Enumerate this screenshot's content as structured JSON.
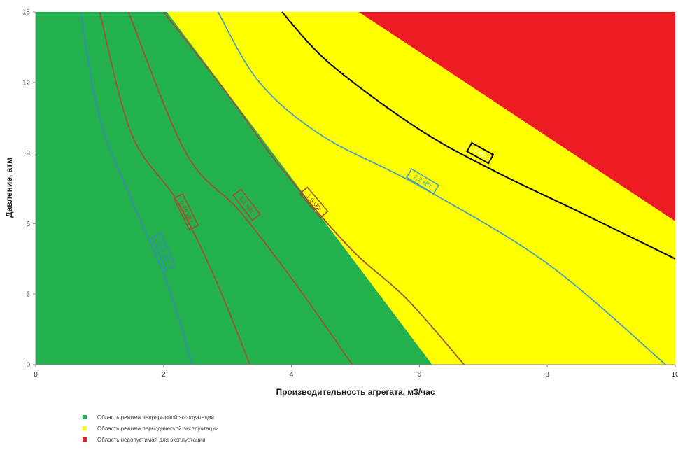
{
  "chart_data": {
    "type": "area",
    "xlabel": "Производительность агрегата, м3/час",
    "ylabel": "Давление, атм",
    "xlim": [
      0,
      10
    ],
    "ylim": [
      0,
      15
    ],
    "xticks": [
      0,
      2,
      4,
      6,
      8,
      10
    ],
    "yticks": [
      0,
      3,
      6,
      9,
      12,
      15
    ],
    "grid": false,
    "legend_position": "bottom-left",
    "regions": [
      {
        "name": "Область режима непрерывной эксплуатации",
        "color": "#22b14c",
        "boundary": [
          {
            "x": 0,
            "y": 15
          },
          {
            "x": 2.05,
            "y": 15
          },
          {
            "x": 6.2,
            "y": 0
          },
          {
            "x": 0,
            "y": 0
          }
        ]
      },
      {
        "name": "Область режима периодической эксплуатации",
        "color": "#ffff00",
        "boundary": [
          {
            "x": 2.05,
            "y": 15
          },
          {
            "x": 5.05,
            "y": 15
          },
          {
            "x": 10,
            "y": 6.1
          },
          {
            "x": 10,
            "y": 0
          },
          {
            "x": 6.2,
            "y": 0
          }
        ]
      },
      {
        "name": "Область недопустимая для эксплуатации",
        "color": "#ed1c24",
        "boundary": [
          {
            "x": 5.05,
            "y": 15
          },
          {
            "x": 10,
            "y": 15
          },
          {
            "x": 10,
            "y": 6.1
          }
        ]
      }
    ],
    "series": [
      {
        "name": "0,55 кВт",
        "color": "#3b8bb5",
        "points": [
          {
            "x": 0.7,
            "y": 15
          },
          {
            "x": 1.0,
            "y": 10.5
          },
          {
            "x": 1.5,
            "y": 7.0
          },
          {
            "x": 2.05,
            "y": 3.5
          },
          {
            "x": 2.45,
            "y": 0
          }
        ],
        "label_at": {
          "x": 2.0,
          "y": 4.8
        }
      },
      {
        "name": "0,75 кВт",
        "color": "#a0522d",
        "points": [
          {
            "x": 1.0,
            "y": 15
          },
          {
            "x": 1.5,
            "y": 9.8
          },
          {
            "x": 2.2,
            "y": 7.0
          },
          {
            "x": 2.8,
            "y": 3.7
          },
          {
            "x": 3.35,
            "y": 0
          }
        ],
        "label_at": {
          "x": 2.35,
          "y": 6.5
        }
      },
      {
        "name": "1,1 кВт",
        "color": "#a0522d",
        "points": [
          {
            "x": 1.45,
            "y": 15
          },
          {
            "x": 2.35,
            "y": 9.0
          },
          {
            "x": 3.2,
            "y": 6.5
          },
          {
            "x": 4.1,
            "y": 3.3
          },
          {
            "x": 4.95,
            "y": 0
          }
        ],
        "label_at": {
          "x": 3.3,
          "y": 6.8
        }
      },
      {
        "name": "1,5 кВт",
        "color": "#a0522d",
        "points": [
          {
            "x": 2.0,
            "y": 15
          },
          {
            "x": 3.0,
            "y": 11.5
          },
          {
            "x": 3.8,
            "y": 8.5
          },
          {
            "x": 4.9,
            "y": 5.0
          },
          {
            "x": 5.8,
            "y": 2.8
          },
          {
            "x": 6.7,
            "y": 0
          }
        ],
        "label_at": {
          "x": 4.35,
          "y": 6.9
        }
      },
      {
        "name": "2,2 кВт",
        "color": "#4a9fb5",
        "points": [
          {
            "x": 2.85,
            "y": 15
          },
          {
            "x": 3.5,
            "y": 12.0
          },
          {
            "x": 4.5,
            "y": 9.7
          },
          {
            "x": 6.0,
            "y": 7.6
          },
          {
            "x": 8.0,
            "y": 4.3
          },
          {
            "x": 9.85,
            "y": 0
          }
        ],
        "label_at": {
          "x": 6.05,
          "y": 7.8
        }
      },
      {
        "name": "3 кВт",
        "color": "#000000",
        "points": [
          {
            "x": 3.85,
            "y": 15
          },
          {
            "x": 4.6,
            "y": 12.8
          },
          {
            "x": 6.0,
            "y": 10.0
          },
          {
            "x": 7.2,
            "y": 8.2
          },
          {
            "x": 8.5,
            "y": 6.5
          },
          {
            "x": 10,
            "y": 4.5
          }
        ],
        "label_at": {
          "x": 6.95,
          "y": 9.0
        }
      }
    ]
  }
}
